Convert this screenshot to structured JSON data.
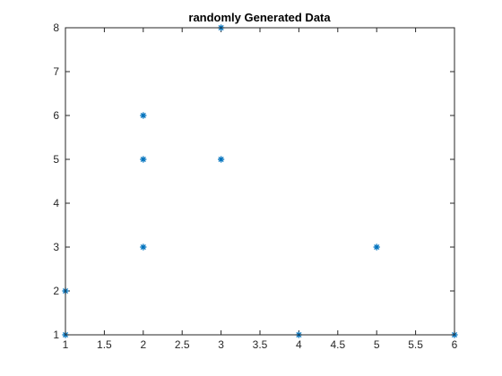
{
  "chart_data": {
    "type": "scatter",
    "title": "randomly Generated Data",
    "xlabel": "",
    "ylabel": "",
    "xlim": [
      1,
      6
    ],
    "ylim": [
      1,
      8
    ],
    "x_ticks": [
      1,
      1.5,
      2,
      2.5,
      3,
      3.5,
      4,
      4.5,
      5,
      5.5,
      6
    ],
    "x_tick_labels": [
      "1",
      "1.5",
      "2",
      "2.5",
      "3",
      "3.5",
      "4",
      "4.5",
      "5",
      "5.5",
      "6"
    ],
    "y_ticks": [
      1,
      2,
      3,
      4,
      5,
      6,
      7,
      8
    ],
    "y_tick_labels": [
      "1",
      "2",
      "3",
      "4",
      "5",
      "6",
      "7",
      "8"
    ],
    "grid": false,
    "box": true,
    "marker": "asterisk",
    "series": [
      {
        "color": "#0072BD",
        "points": [
          {
            "x": 1,
            "y": 1
          },
          {
            "x": 1,
            "y": 2
          },
          {
            "x": 2,
            "y": 3
          },
          {
            "x": 2,
            "y": 5
          },
          {
            "x": 2,
            "y": 6
          },
          {
            "x": 3,
            "y": 5
          },
          {
            "x": 3,
            "y": 8
          },
          {
            "x": 4,
            "y": 1
          },
          {
            "x": 5,
            "y": 3
          },
          {
            "x": 6,
            "y": 1
          }
        ]
      }
    ]
  }
}
